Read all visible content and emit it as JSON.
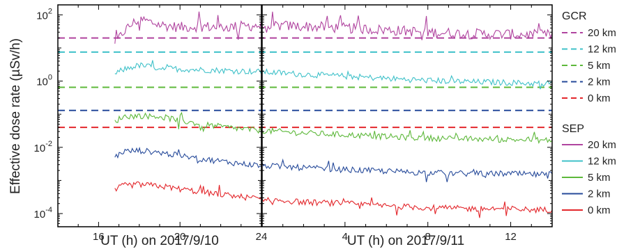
{
  "chart_data": {
    "type": "line",
    "ylabel": "Effective dose rate (µSv/h)",
    "yscale": "log",
    "ylim": [
      4e-05,
      200
    ],
    "y_ticks": [
      {
        "value": 0.0001,
        "base": "10",
        "exp": "-4"
      },
      {
        "value": 0.01,
        "base": "10",
        "exp": "-2"
      },
      {
        "value": 1,
        "base": "10",
        "exp": "0"
      },
      {
        "value": 100,
        "base": "10",
        "exp": "2"
      }
    ],
    "panels": [
      {
        "xlabel": "UT (h) on 2017/9/10",
        "xlim": [
          14,
          24
        ],
        "x_ticks": [
          "16",
          "20",
          "24"
        ],
        "x_tick_values": [
          16,
          20,
          24
        ]
      },
      {
        "xlabel": "UT (h) on 2017/9/11",
        "xlim": [
          0,
          14
        ],
        "x_ticks": [
          "4",
          "8",
          "12"
        ],
        "x_tick_values": [
          4,
          8,
          12
        ]
      }
    ],
    "gcr_levels": [
      {
        "name": "20 km",
        "value": 20,
        "color": "#b0449f"
      },
      {
        "name": "12 km",
        "value": 7.5,
        "color": "#3fc1c9"
      },
      {
        "name": "5 km",
        "value": 0.65,
        "color": "#5db83a"
      },
      {
        "name": "2 km",
        "value": 0.13,
        "color": "#264a9a"
      },
      {
        "name": "0 km",
        "value": 0.04,
        "color": "#e3262b"
      }
    ],
    "sep_series": [
      {
        "name": "20 km",
        "color": "#b0449f",
        "day1": [
          [
            16.8,
            12
          ],
          [
            17.2,
            30
          ],
          [
            17.6,
            50
          ],
          [
            18.0,
            75
          ],
          [
            19.0,
            50
          ],
          [
            20.0,
            42
          ],
          [
            21.0,
            45
          ],
          [
            22.0,
            42
          ],
          [
            23.0,
            45
          ],
          [
            24.0,
            48
          ]
        ],
        "day2": [
          [
            0,
            48
          ],
          [
            2,
            45
          ],
          [
            4,
            40
          ],
          [
            6,
            35
          ],
          [
            8,
            30
          ],
          [
            10,
            27
          ],
          [
            12,
            26
          ],
          [
            13,
            25
          ],
          [
            14,
            25
          ]
        ]
      },
      {
        "name": "12 km",
        "color": "#3fc1c9",
        "day1": [
          [
            16.8,
            1.6
          ],
          [
            17.2,
            2.2
          ],
          [
            17.6,
            2.6
          ],
          [
            18.0,
            3.0
          ],
          [
            19.0,
            2.5
          ],
          [
            20.0,
            2.3
          ],
          [
            21.0,
            2.2
          ],
          [
            22.0,
            2.1
          ],
          [
            23.0,
            2.0
          ],
          [
            24.0,
            1.9
          ]
        ],
        "day2": [
          [
            0,
            1.9
          ],
          [
            2,
            1.6
          ],
          [
            4,
            1.4
          ],
          [
            6,
            1.2
          ],
          [
            8,
            1.05
          ],
          [
            10,
            0.95
          ],
          [
            12,
            0.9
          ],
          [
            13,
            0.85
          ],
          [
            14,
            0.85
          ]
        ]
      },
      {
        "name": "5 km",
        "color": "#5db83a",
        "day1": [
          [
            16.8,
            0.06
          ],
          [
            17.2,
            0.085
          ],
          [
            18.0,
            0.09
          ],
          [
            19.0,
            0.085
          ],
          [
            20.0,
            0.065
          ],
          [
            21.0,
            0.05
          ],
          [
            22.0,
            0.042
          ],
          [
            23.0,
            0.036
          ],
          [
            24.0,
            0.032
          ]
        ],
        "day2": [
          [
            0,
            0.032
          ],
          [
            2,
            0.027
          ],
          [
            4,
            0.024
          ],
          [
            6,
            0.021
          ],
          [
            8,
            0.019
          ],
          [
            10,
            0.018
          ],
          [
            12,
            0.017
          ],
          [
            13,
            0.017
          ],
          [
            14,
            0.016
          ]
        ]
      },
      {
        "name": "2 km",
        "color": "#264a9a",
        "day1": [
          [
            16.8,
            0.005
          ],
          [
            17.2,
            0.0075
          ],
          [
            18.0,
            0.008
          ],
          [
            19.0,
            0.007
          ],
          [
            20.0,
            0.0055
          ],
          [
            21.0,
            0.0045
          ],
          [
            22.0,
            0.0038
          ],
          [
            23.0,
            0.0032
          ],
          [
            24.0,
            0.0028
          ]
        ],
        "day2": [
          [
            0,
            0.0028
          ],
          [
            2,
            0.0024
          ],
          [
            4,
            0.0021
          ],
          [
            6,
            0.0019
          ],
          [
            8,
            0.0017
          ],
          [
            10,
            0.0016
          ],
          [
            12,
            0.0016
          ],
          [
            13,
            0.0015
          ],
          [
            14,
            0.0015
          ]
        ]
      },
      {
        "name": "0 km",
        "color": "#e3262b",
        "day1": [
          [
            16.8,
            0.0005
          ],
          [
            17.2,
            0.0007
          ],
          [
            18.0,
            0.00075
          ],
          [
            19.0,
            0.00068
          ],
          [
            20.0,
            0.00055
          ],
          [
            21.0,
            0.00045
          ],
          [
            22.0,
            0.00038
          ],
          [
            23.0,
            0.00032
          ],
          [
            24.0,
            0.00028
          ]
        ],
        "day2": [
          [
            0,
            0.00028
          ],
          [
            2,
            0.00022
          ],
          [
            4,
            0.0002
          ],
          [
            6,
            0.00017
          ],
          [
            8,
            0.00015
          ],
          [
            10,
            0.00014
          ],
          [
            12,
            0.00014
          ],
          [
            13,
            0.00013
          ],
          [
            14,
            0.00013
          ]
        ]
      }
    ],
    "legend": {
      "gcr_title": "GCR",
      "sep_title": "SEP",
      "placement": "right"
    }
  }
}
